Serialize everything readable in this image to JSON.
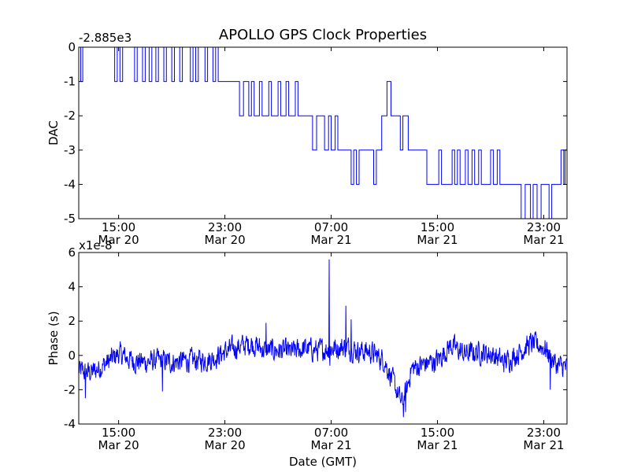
{
  "colors": {
    "series": "#0000ff",
    "axis": "#000000",
    "background": "#ffffff"
  },
  "chart_data": [
    {
      "type": "line",
      "title": "APOLLO GPS Clock Properties",
      "xlabel": "",
      "ylabel": "DAC",
      "offset_text": "-2.885e3",
      "ylim": [
        -5,
        0
      ],
      "yticks": [
        0,
        -1,
        -2,
        -3,
        -4,
        -5
      ],
      "ytick_labels": [
        "0",
        "-1",
        "-2",
        "-3",
        "-4",
        "-5"
      ],
      "xlim_hours": [
        12.0,
        48.75
      ],
      "xticks_hours": [
        15,
        23,
        31,
        39,
        47
      ],
      "xtick_labels": [
        [
          "15:00",
          "Mar 20"
        ],
        [
          "23:00",
          "Mar 20"
        ],
        [
          "07:00",
          "Mar 21"
        ],
        [
          "15:00",
          "Mar 21"
        ],
        [
          "23:00",
          "Mar 21"
        ]
      ],
      "x_unit": "hours since Mar 20 00:00 GMT",
      "series": [
        {
          "name": "DAC",
          "steps": [
            [
              12.0,
              0
            ],
            [
              12.15,
              -1
            ],
            [
              12.3,
              0
            ],
            [
              14.7,
              -1
            ],
            [
              14.9,
              0
            ],
            [
              15.1,
              -1
            ],
            [
              15.3,
              0
            ],
            [
              16.2,
              -1
            ],
            [
              16.4,
              0
            ],
            [
              16.8,
              -1
            ],
            [
              17.0,
              0
            ],
            [
              17.3,
              -1
            ],
            [
              17.5,
              0
            ],
            [
              17.8,
              -1
            ],
            [
              18.0,
              0
            ],
            [
              18.4,
              -1
            ],
            [
              18.6,
              0
            ],
            [
              19.0,
              -1
            ],
            [
              19.2,
              0
            ],
            [
              19.6,
              -1
            ],
            [
              19.8,
              0
            ],
            [
              20.4,
              -1
            ],
            [
              20.6,
              0
            ],
            [
              20.8,
              -1
            ],
            [
              21.0,
              0
            ],
            [
              21.5,
              -1
            ],
            [
              21.7,
              0
            ],
            [
              22.1,
              -1
            ],
            [
              22.3,
              0
            ],
            [
              22.5,
              -1
            ],
            [
              24.1,
              -2
            ],
            [
              24.4,
              -1
            ],
            [
              24.8,
              -2
            ],
            [
              25.0,
              -1
            ],
            [
              25.2,
              -2
            ],
            [
              25.6,
              -1
            ],
            [
              25.8,
              -2
            ],
            [
              26.3,
              -1
            ],
            [
              26.5,
              -2
            ],
            [
              27.0,
              -1
            ],
            [
              27.2,
              -2
            ],
            [
              27.6,
              -1
            ],
            [
              27.8,
              -2
            ],
            [
              28.3,
              -1
            ],
            [
              28.5,
              -2
            ],
            [
              29.6,
              -3
            ],
            [
              29.9,
              -2
            ],
            [
              30.5,
              -3
            ],
            [
              30.8,
              -2
            ],
            [
              31.0,
              -3
            ],
            [
              31.3,
              -2
            ],
            [
              31.5,
              -3
            ],
            [
              32.5,
              -4
            ],
            [
              32.7,
              -3
            ],
            [
              32.9,
              -4
            ],
            [
              33.1,
              -3
            ],
            [
              34.2,
              -4
            ],
            [
              34.4,
              -3
            ],
            [
              34.8,
              -2
            ],
            [
              35.2,
              -1
            ],
            [
              35.5,
              -2
            ],
            [
              36.2,
              -3
            ],
            [
              36.4,
              -2
            ],
            [
              36.8,
              -3
            ],
            [
              38.2,
              -4
            ],
            [
              39.1,
              -3
            ],
            [
              39.3,
              -4
            ],
            [
              40.1,
              -3
            ],
            [
              40.3,
              -4
            ],
            [
              40.5,
              -3
            ],
            [
              40.7,
              -4
            ],
            [
              41.1,
              -3
            ],
            [
              41.3,
              -4
            ],
            [
              41.6,
              -3
            ],
            [
              41.8,
              -4
            ],
            [
              42.1,
              -3
            ],
            [
              42.3,
              -4
            ],
            [
              43.0,
              -3
            ],
            [
              43.2,
              -4
            ],
            [
              43.5,
              -3
            ],
            [
              43.7,
              -4
            ],
            [
              45.3,
              -5
            ],
            [
              45.6,
              -4
            ],
            [
              46.0,
              -5
            ],
            [
              46.2,
              -4
            ],
            [
              46.5,
              -5
            ],
            [
              46.8,
              -4
            ],
            [
              47.4,
              -5
            ],
            [
              47.6,
              -4
            ],
            [
              48.3,
              -3
            ],
            [
              48.5,
              -4
            ],
            [
              48.6,
              -3
            ]
          ]
        }
      ]
    },
    {
      "type": "line",
      "title": "",
      "xlabel": "Date (GMT)",
      "ylabel": "Phase (s)",
      "offset_text": "x1e-8",
      "ylim": [
        -4,
        6
      ],
      "yticks": [
        6,
        4,
        2,
        0,
        -2,
        -4
      ],
      "ytick_labels": [
        "6",
        "4",
        "2",
        "0",
        "-2",
        "-4"
      ],
      "xlim_hours": [
        12.0,
        48.75
      ],
      "xticks_hours": [
        15,
        23,
        31,
        39,
        47
      ],
      "xtick_labels": [
        [
          "15:00",
          "Mar 20"
        ],
        [
          "23:00",
          "Mar 20"
        ],
        [
          "07:00",
          "Mar 21"
        ],
        [
          "15:00",
          "Mar 21"
        ],
        [
          "23:00",
          "Mar 21"
        ]
      ],
      "x_unit": "hours since Mar 20 00:00 GMT",
      "series": [
        {
          "name": "Phase",
          "trend": [
            [
              12.0,
              -0.9
            ],
            [
              13.0,
              -1.0
            ],
            [
              14.0,
              -0.5
            ],
            [
              15.0,
              0.1
            ],
            [
              16.0,
              -0.3
            ],
            [
              17.0,
              -0.4
            ],
            [
              18.0,
              -0.3
            ],
            [
              19.0,
              -0.4
            ],
            [
              20.0,
              -0.3
            ],
            [
              21.0,
              -0.3
            ],
            [
              22.0,
              -0.2
            ],
            [
              23.0,
              0.2
            ],
            [
              24.0,
              0.5
            ],
            [
              25.0,
              0.7
            ],
            [
              26.0,
              0.3
            ],
            [
              27.0,
              0.3
            ],
            [
              28.0,
              0.2
            ],
            [
              29.0,
              0.4
            ],
            [
              30.0,
              0.3
            ],
            [
              31.0,
              0.4
            ],
            [
              32.0,
              0.5
            ],
            [
              33.0,
              0.3
            ],
            [
              34.0,
              0.2
            ],
            [
              35.0,
              -0.3
            ],
            [
              35.8,
              -1.8
            ],
            [
              36.3,
              -2.8
            ],
            [
              36.7,
              -2.0
            ],
            [
              37.0,
              -0.8
            ],
            [
              38.0,
              -0.5
            ],
            [
              39.0,
              -0.3
            ],
            [
              40.0,
              0.6
            ],
            [
              41.0,
              0.1
            ],
            [
              42.0,
              0.2
            ],
            [
              43.0,
              0.1
            ],
            [
              44.0,
              -0.4
            ],
            [
              45.0,
              0.1
            ],
            [
              46.0,
              0.7
            ],
            [
              47.0,
              0.5
            ],
            [
              48.0,
              -0.6
            ],
            [
              48.75,
              -0.7
            ]
          ],
          "noise_amplitude": 0.55,
          "spikes": [
            [
              30.85,
              5.6
            ],
            [
              30.9,
              -0.6
            ],
            [
              32.1,
              2.9
            ],
            [
              32.5,
              2.1
            ],
            [
              36.45,
              -3.6
            ],
            [
              36.6,
              -3.3
            ],
            [
              12.5,
              -2.5
            ],
            [
              18.3,
              -2.1
            ],
            [
              26.1,
              1.9
            ],
            [
              47.5,
              -2.0
            ]
          ]
        }
      ]
    }
  ]
}
